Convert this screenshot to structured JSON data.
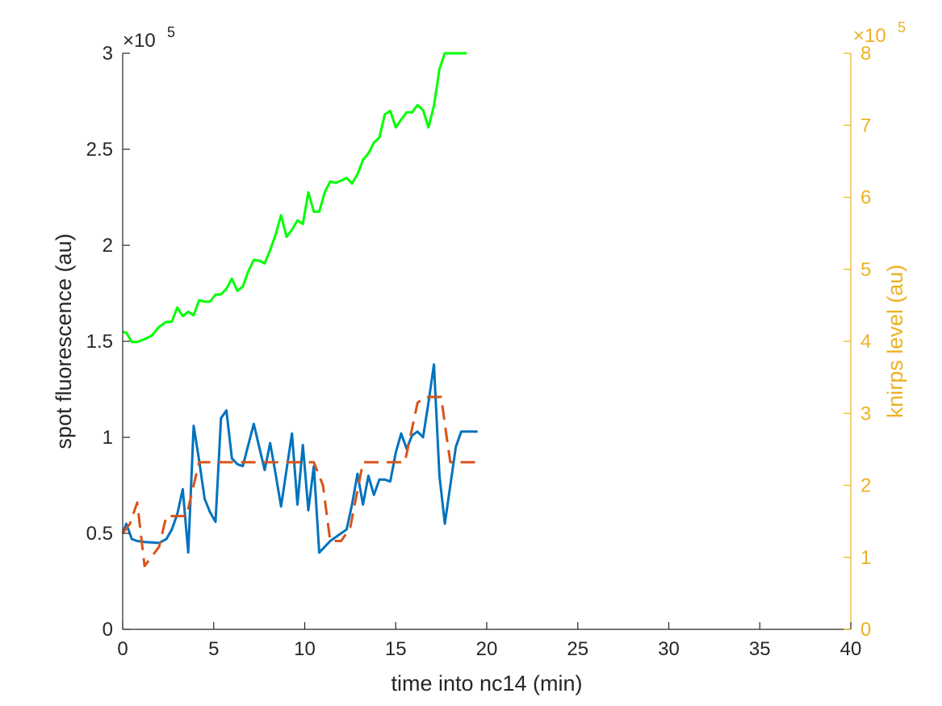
{
  "chart_data": {
    "type": "line",
    "xlabel": "time into nc14 (min)",
    "ylabel": "spot fluorescence (au)",
    "y2label": "knirps level (au)",
    "xlim": [
      0,
      40
    ],
    "ylim": [
      0,
      300000
    ],
    "y2lim": [
      0,
      800000
    ],
    "x_ticks": [
      "0",
      "5",
      "10",
      "15",
      "20",
      "25",
      "30",
      "35",
      "40"
    ],
    "y_ticks": [
      "0",
      "0.5",
      "1",
      "1.5",
      "2",
      "2.5",
      "3"
    ],
    "y2_ticks": [
      "0",
      "1",
      "2",
      "3",
      "4",
      "5",
      "6",
      "7",
      "8"
    ],
    "y_exponent": "×10",
    "y_exponent_power": "5",
    "y2_exponent": "×10",
    "y2_exponent_power": "5",
    "colors": {
      "axis_left": "#000000",
      "axis_right": "#EDB120",
      "spot": "#0072BD",
      "fit": "#D95319",
      "knirps": "#00FF00"
    },
    "series": [
      {
        "axis": "left",
        "color": "#0072BD",
        "style": "solid",
        "x": [
          0.0,
          0.2,
          0.5,
          0.8,
          1.2,
          2.0,
          2.4,
          2.7,
          3.0,
          3.3,
          3.6,
          3.9,
          4.2,
          4.5,
          4.8,
          5.1,
          5.4,
          5.7,
          6.0,
          6.3,
          6.6,
          7.2,
          7.5,
          7.8,
          8.1,
          8.4,
          8.7,
          9.3,
          9.6,
          9.9,
          10.2,
          10.5,
          10.8,
          11.1,
          11.4,
          12.3,
          12.6,
          12.9,
          13.2,
          13.5,
          13.8,
          14.1,
          14.4,
          14.7,
          15.0,
          15.3,
          15.6,
          15.9,
          16.2,
          16.5,
          16.8,
          17.1,
          17.4,
          17.7,
          18.0,
          18.3,
          18.6,
          18.9,
          19.2,
          19.5
        ],
        "y": [
          50000,
          55000,
          47000,
          46000,
          45500,
          45000,
          47000,
          52000,
          60000,
          73000,
          40000,
          106000,
          88000,
          68000,
          61000,
          56000,
          110000,
          114000,
          89000,
          86000,
          85000,
          107000,
          95000,
          83000,
          97000,
          81000,
          64000,
          102000,
          65000,
          96000,
          62000,
          85000,
          40000,
          43000,
          46000,
          52000,
          65000,
          81000,
          65000,
          80000,
          70000,
          78000,
          78000,
          77000,
          92000,
          102000,
          94000,
          101000,
          103000,
          100000,
          118000,
          138000,
          80000,
          55000,
          75000,
          95000,
          103000,
          103000,
          103000,
          103000
        ]
      },
      {
        "axis": "left",
        "color": "#D95319",
        "style": "dashed",
        "x": [
          0.0,
          0.4,
          0.8,
          1.2,
          1.6,
          2.0,
          2.4,
          3.5,
          4.2,
          5.0,
          8.0,
          10.5,
          11.0,
          11.4,
          12.0,
          12.5,
          13.2,
          13.6,
          15.5,
          16.2,
          16.6,
          17.5,
          17.8,
          18.0,
          19.5
        ],
        "y": [
          50000,
          55000,
          66000,
          33000,
          38000,
          43000,
          59000,
          59000,
          87000,
          87000,
          87000,
          87000,
          75000,
          46000,
          46000,
          53000,
          87000,
          87000,
          87000,
          118000,
          121000,
          121000,
          100000,
          87000,
          87000
        ]
      },
      {
        "axis": "right",
        "color": "#00FF00",
        "style": "solid",
        "x": [
          0.0,
          0.2,
          0.5,
          0.8,
          1.2,
          1.6,
          2.0,
          2.4,
          2.7,
          3.0,
          3.3,
          3.6,
          3.9,
          4.2,
          4.5,
          4.8,
          5.1,
          5.4,
          5.7,
          6.0,
          6.3,
          6.6,
          6.9,
          7.2,
          7.5,
          7.8,
          8.1,
          8.4,
          8.7,
          9.0,
          9.3,
          9.6,
          9.9,
          10.2,
          10.5,
          10.8,
          11.1,
          11.4,
          11.7,
          12.0,
          12.3,
          12.6,
          12.9,
          13.2,
          13.5,
          13.8,
          14.1,
          14.4,
          14.7,
          15.0,
          15.3,
          15.6,
          15.9,
          16.2,
          16.5,
          16.8,
          17.1,
          17.4,
          17.7,
          18.0,
          18.3,
          18.6,
          18.9
        ],
        "y": [
          413000,
          412000,
          399000,
          399000,
          403000,
          408000,
          420000,
          427000,
          427000,
          447000,
          435000,
          441000,
          436000,
          457000,
          455000,
          455000,
          465000,
          465000,
          473000,
          487000,
          470000,
          476000,
          497000,
          513000,
          512000,
          508000,
          527000,
          548000,
          575000,
          545000,
          555000,
          568000,
          563000,
          607000,
          580000,
          580000,
          607000,
          622000,
          620000,
          623000,
          627000,
          619000,
          632000,
          652000,
          661000,
          676000,
          683000,
          715000,
          720000,
          697000,
          708000,
          718000,
          718000,
          728000,
          721000,
          697000,
          727000,
          778000,
          800000,
          800000,
          800000,
          800000,
          800000
        ]
      }
    ]
  }
}
